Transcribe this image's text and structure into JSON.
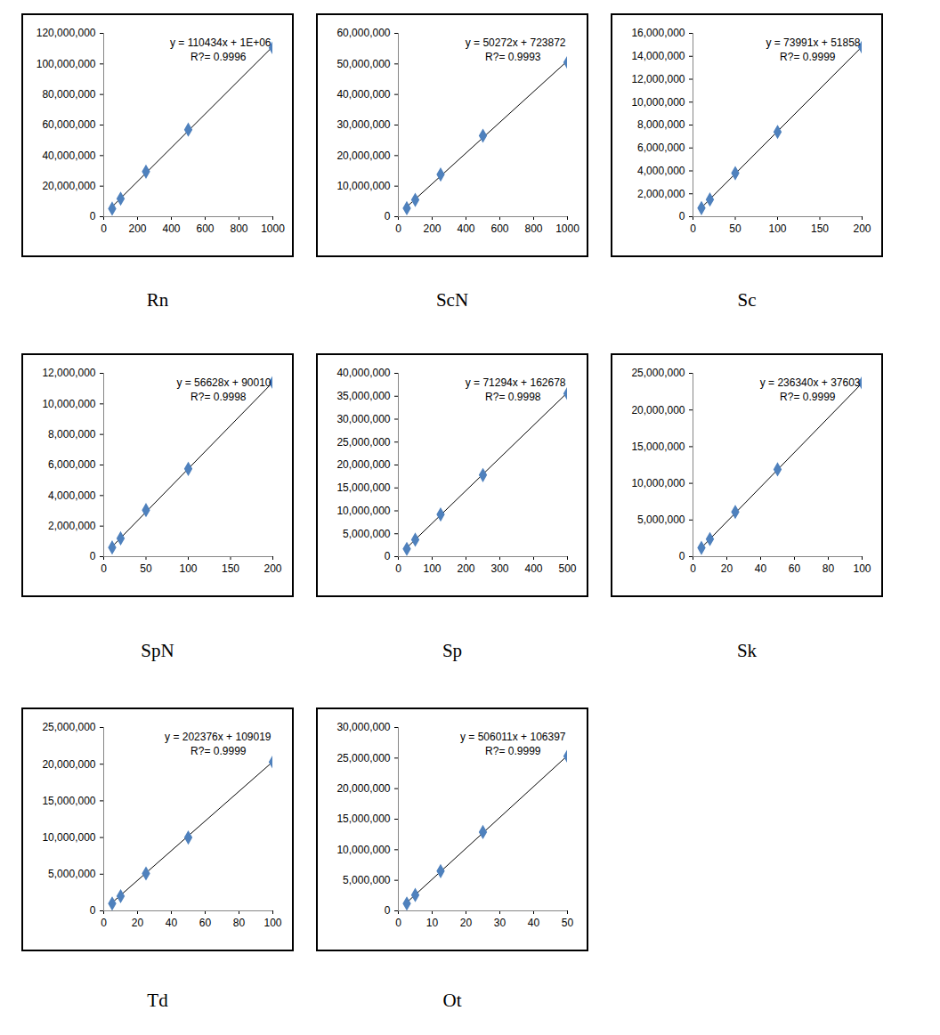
{
  "chart_data": [
    {
      "type": "scatter",
      "title": "Rn",
      "color": "#4f81bd",
      "marker": "diamond",
      "x": [
        50,
        100,
        250,
        500,
        1000
      ],
      "values": [
        5300000,
        11800000,
        29500000,
        57000000,
        110500000
      ],
      "trendline": {
        "type": "line",
        "color": "#000000",
        "slope": 110434,
        "intercept": 1000000,
        "equation": "y = 110434x + 1E+06",
        "r2": "R?= 0.9996"
      },
      "xlim": [
        0,
        1000
      ],
      "xticks": [
        0,
        200,
        400,
        600,
        800,
        1000
      ],
      "ylim": [
        0,
        120000000
      ],
      "yticks": [
        0,
        {
          "value": 20000000,
          "label": "20,000,000"
        },
        {
          "value": 40000000,
          "label": "40,000,000"
        },
        {
          "value": 60000000,
          "label": "60,000,000"
        },
        {
          "value": 80000000,
          "label": "80,000,000"
        },
        {
          "value": 100000000,
          "label": "100,000,000"
        },
        {
          "value": 120000000,
          "label": "120,000,000"
        }
      ]
    },
    {
      "type": "scatter",
      "title": "ScN",
      "color": "#4f81bd",
      "marker": "diamond",
      "x": [
        50,
        100,
        250,
        500,
        1000
      ],
      "values": [
        2800000,
        5500000,
        13800000,
        26500000,
        50500000
      ],
      "trendline": {
        "type": "line",
        "color": "#000000",
        "slope": 50272,
        "intercept": 723872,
        "equation": "y = 50272x + 723872",
        "r2": "R?= 0.9993"
      },
      "xlim": [
        0,
        1000
      ],
      "xticks": [
        0,
        200,
        400,
        600,
        800,
        1000
      ],
      "ylim": [
        0,
        60000000
      ],
      "yticks": [
        0,
        {
          "value": 10000000,
          "label": "10,000,000"
        },
        {
          "value": 20000000,
          "label": "20,000,000"
        },
        {
          "value": 30000000,
          "label": "30,000,000"
        },
        {
          "value": 40000000,
          "label": "40,000,000"
        },
        {
          "value": 50000000,
          "label": "50,000,000"
        },
        {
          "value": 60000000,
          "label": "60,000,000"
        }
      ]
    },
    {
      "type": "scatter",
      "title": "Sc",
      "color": "#4f81bd",
      "marker": "diamond",
      "x": [
        10,
        20,
        50,
        100,
        200
      ],
      "values": [
        750000,
        1500000,
        3800000,
        7400000,
        14800000
      ],
      "trendline": {
        "type": "line",
        "color": "#000000",
        "slope": 73991,
        "intercept": 51858,
        "equation": "y = 73991x + 51858",
        "r2": "R?= 0.9999"
      },
      "xlim": [
        0,
        200
      ],
      "xticks": [
        0,
        50,
        100,
        150,
        200
      ],
      "ylim": [
        0,
        16000000
      ],
      "yticks": [
        0,
        {
          "value": 2000000,
          "label": "2,000,000"
        },
        {
          "value": 4000000,
          "label": "4,000,000"
        },
        {
          "value": 6000000,
          "label": "6,000,000"
        },
        {
          "value": 8000000,
          "label": "8,000,000"
        },
        {
          "value": 10000000,
          "label": "10,000,000"
        },
        {
          "value": 12000000,
          "label": "12,000,000"
        },
        {
          "value": 14000000,
          "label": "14,000,000"
        },
        {
          "value": 16000000,
          "label": "16,000,000"
        }
      ]
    },
    {
      "type": "scatter",
      "title": "SpN",
      "color": "#4f81bd",
      "marker": "diamond",
      "x": [
        10,
        20,
        50,
        100,
        200
      ],
      "values": [
        600000,
        1200000,
        3050000,
        5750000,
        11400000
      ],
      "trendline": {
        "type": "line",
        "color": "#000000",
        "slope": 56628,
        "intercept": 90010,
        "equation": "y = 56628x + 90010",
        "r2": "R?= 0.9998"
      },
      "xlim": [
        0,
        200
      ],
      "xticks": [
        0,
        50,
        100,
        150,
        200
      ],
      "ylim": [
        0,
        12000000
      ],
      "yticks": [
        0,
        {
          "value": 2000000,
          "label": "2,000,000"
        },
        {
          "value": 4000000,
          "label": "4,000,000"
        },
        {
          "value": 6000000,
          "label": "6,000,000"
        },
        {
          "value": 8000000,
          "label": "8,000,000"
        },
        {
          "value": 10000000,
          "label": "10,000,000"
        },
        {
          "value": 12000000,
          "label": "12,000,000"
        }
      ]
    },
    {
      "type": "scatter",
      "title": "Sp",
      "color": "#4f81bd",
      "marker": "diamond",
      "x": [
        25,
        50,
        125,
        250,
        500
      ],
      "values": [
        1700000,
        3700000,
        9200000,
        17800000,
        35600000
      ],
      "trendline": {
        "type": "line",
        "color": "#000000",
        "slope": 71294,
        "intercept": 162678,
        "equation": "y = 71294x + 162678",
        "r2": "R?= 0.9998"
      },
      "xlim": [
        0,
        500
      ],
      "xticks": [
        0,
        100,
        200,
        300,
        400,
        500
      ],
      "ylim": [
        0,
        40000000
      ],
      "yticks": [
        0,
        {
          "value": 5000000,
          "label": "5,000,000"
        },
        {
          "value": 10000000,
          "label": "10,000,000"
        },
        {
          "value": 15000000,
          "label": "15,000,000"
        },
        {
          "value": 20000000,
          "label": "20,000,000"
        },
        {
          "value": 25000000,
          "label": "25,000,000"
        },
        {
          "value": 30000000,
          "label": "30,000,000"
        },
        {
          "value": 35000000,
          "label": "35,000,000"
        },
        {
          "value": 40000000,
          "label": "40,000,000"
        }
      ]
    },
    {
      "type": "scatter",
      "title": "Sk",
      "color": "#4f81bd",
      "marker": "diamond",
      "x": [
        5,
        10,
        25,
        50,
        100
      ],
      "values": [
        1200000,
        2400000,
        6100000,
        11900000,
        23700000
      ],
      "trendline": {
        "type": "line",
        "color": "#000000",
        "slope": 236340,
        "intercept": 37603,
        "equation": "y = 236340x + 37603",
        "r2": "R?= 0.9999"
      },
      "xlim": [
        0,
        100
      ],
      "xticks": [
        0,
        20,
        40,
        60,
        80,
        100
      ],
      "ylim": [
        0,
        25000000
      ],
      "yticks": [
        0,
        {
          "value": 5000000,
          "label": "5,000,000"
        },
        {
          "value": 10000000,
          "label": "10,000,000"
        },
        {
          "value": 15000000,
          "label": "15,000,000"
        },
        {
          "value": 20000000,
          "label": "20,000,000"
        },
        {
          "value": 25000000,
          "label": "25,000,000"
        }
      ]
    },
    {
      "type": "scatter",
      "title": "Td",
      "color": "#4f81bd",
      "marker": "diamond",
      "x": [
        5,
        10,
        25,
        50,
        100
      ],
      "values": [
        1000000,
        2000000,
        5100000,
        10000000,
        20300000
      ],
      "trendline": {
        "type": "line",
        "color": "#000000",
        "slope": 202376,
        "intercept": 109019,
        "equation": "y = 202376x + 109019",
        "r2": "R?= 0.9999"
      },
      "xlim": [
        0,
        100
      ],
      "xticks": [
        0,
        20,
        40,
        60,
        80,
        100
      ],
      "ylim": [
        0,
        25000000
      ],
      "yticks": [
        0,
        {
          "value": 5000000,
          "label": "5,000,000"
        },
        {
          "value": 10000000,
          "label": "10,000,000"
        },
        {
          "value": 15000000,
          "label": "15,000,000"
        },
        {
          "value": 20000000,
          "label": "20,000,000"
        },
        {
          "value": 25000000,
          "label": "25,000,000"
        }
      ]
    },
    {
      "type": "scatter",
      "title": "Ot",
      "color": "#4f81bd",
      "marker": "diamond",
      "x": [
        2.5,
        5,
        12.5,
        25,
        50
      ],
      "values": [
        1200000,
        2600000,
        6500000,
        12900000,
        25300000
      ],
      "trendline": {
        "type": "line",
        "color": "#000000",
        "slope": 506011,
        "intercept": 106397,
        "equation": "y = 506011x + 106397",
        "r2": "R?= 0.9999"
      },
      "xlim": [
        0,
        50
      ],
      "xticks": [
        0,
        10,
        20,
        30,
        40,
        50
      ],
      "ylim": [
        0,
        30000000
      ],
      "yticks": [
        0,
        {
          "value": 5000000,
          "label": "5,000,000"
        },
        {
          "value": 10000000,
          "label": "10,000,000"
        },
        {
          "value": 15000000,
          "label": "15,000,000"
        },
        {
          "value": 20000000,
          "label": "20,000,000"
        },
        {
          "value": 25000000,
          "label": "25,000,000"
        },
        {
          "value": 30000000,
          "label": "30,000,000"
        }
      ]
    }
  ]
}
